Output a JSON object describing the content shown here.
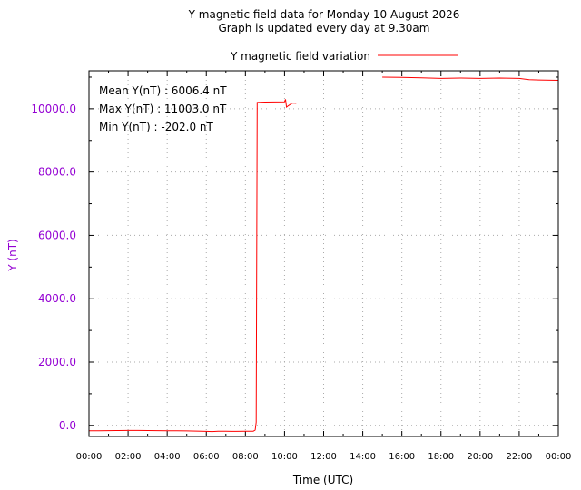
{
  "chart_data": {
    "type": "line",
    "title": "Y magnetic field data for Monday 10 August 2026",
    "subtitle": "Graph is updated every day at 9.30am",
    "xlabel": "Time (UTC)",
    "ylabel": "Y (nT)",
    "legend": "top-center",
    "grid": true,
    "colors": {
      "series": "#ff0000",
      "y_axis": "#9400d3"
    },
    "xlim": [
      0,
      24
    ],
    "ylim": [
      -350,
      11200
    ],
    "x_ticks": [
      {
        "v": 0,
        "label": "00:00"
      },
      {
        "v": 2,
        "label": "02:00"
      },
      {
        "v": 4,
        "label": "04:00"
      },
      {
        "v": 6,
        "label": "06:00"
      },
      {
        "v": 8,
        "label": "08:00"
      },
      {
        "v": 10,
        "label": "10:00"
      },
      {
        "v": 12,
        "label": "12:00"
      },
      {
        "v": 14,
        "label": "14:00"
      },
      {
        "v": 16,
        "label": "16:00"
      },
      {
        "v": 18,
        "label": "18:00"
      },
      {
        "v": 20,
        "label": "20:00"
      },
      {
        "v": 22,
        "label": "22:00"
      },
      {
        "v": 24,
        "label": "00:00"
      }
    ],
    "y_ticks": [
      {
        "v": 0,
        "label": "0.0"
      },
      {
        "v": 2000,
        "label": "2000.0"
      },
      {
        "v": 4000,
        "label": "4000.0"
      },
      {
        "v": 6000,
        "label": "6000.0"
      },
      {
        "v": 8000,
        "label": "8000.0"
      },
      {
        "v": 10000,
        "label": "10000.0"
      }
    ],
    "stats": {
      "mean": "Mean Y(nT) : 6006.4 nT",
      "max": "Max Y(nT) : 11003.0 nT",
      "min": "Min Y(nT) : -202.0 nT"
    },
    "series": [
      {
        "name": "Y magnetic field variation",
        "segments": [
          [
            [
              0.0,
              -170
            ],
            [
              0.5,
              -172
            ],
            [
              1.0,
              -168
            ],
            [
              1.5,
              -165
            ],
            [
              2.0,
              -160
            ],
            [
              2.5,
              -162
            ],
            [
              3.0,
              -165
            ],
            [
              3.5,
              -168
            ],
            [
              4.0,
              -170
            ],
            [
              4.5,
              -172
            ],
            [
              5.0,
              -175
            ],
            [
              5.5,
              -180
            ],
            [
              6.0,
              -190
            ],
            [
              6.3,
              -195
            ],
            [
              6.6,
              -185
            ],
            [
              7.0,
              -188
            ],
            [
              7.5,
              -190
            ],
            [
              8.0,
              -188
            ],
            [
              8.4,
              -185
            ],
            [
              8.5,
              -150
            ],
            [
              8.55,
              100
            ],
            [
              8.6,
              10200
            ],
            [
              9.0,
              10210
            ],
            [
              9.5,
              10215
            ],
            [
              10.0,
              10220
            ],
            [
              10.05,
              10300
            ],
            [
              10.1,
              10050
            ],
            [
              10.2,
              10100
            ],
            [
              10.4,
              10180
            ],
            [
              10.6,
              10170
            ]
          ],
          [
            [
              15.0,
              11000
            ],
            [
              16.0,
              10990
            ],
            [
              17.0,
              10980
            ],
            [
              18.0,
              10960
            ],
            [
              19.0,
              10970
            ],
            [
              20.0,
              10960
            ],
            [
              21.0,
              10970
            ],
            [
              22.0,
              10960
            ],
            [
              22.5,
              10920
            ],
            [
              23.0,
              10910
            ],
            [
              24.0,
              10900
            ]
          ]
        ]
      }
    ]
  }
}
